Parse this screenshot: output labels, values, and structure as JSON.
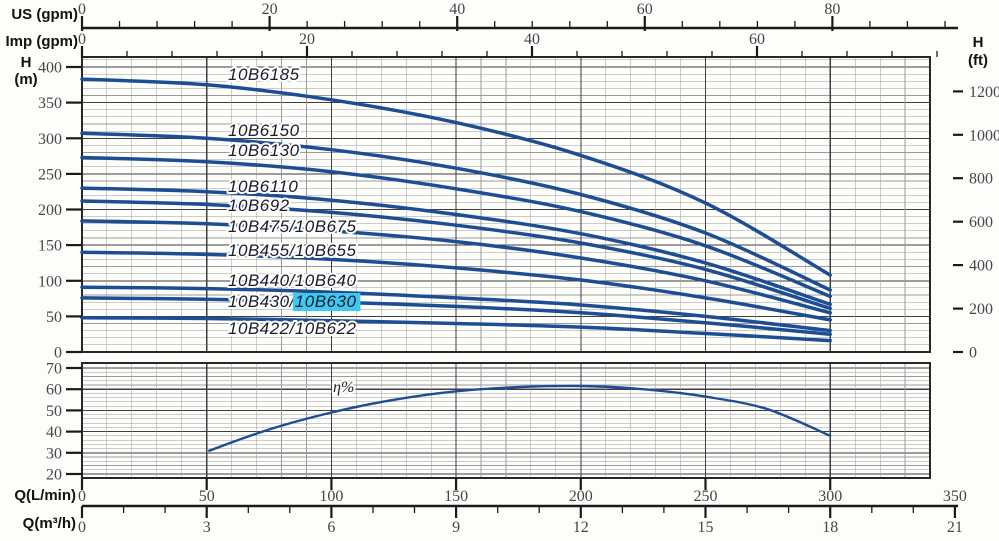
{
  "axis_titles": {
    "us": "US (gpm)",
    "imp": "Imp (gpm)",
    "h_left_sym": "H",
    "h_left_unit": "(m)",
    "h_right_sym": "H",
    "h_right_unit": "(ft)",
    "q_lmin": "Q(L/min)",
    "q_m3h": "Q(m³/h)"
  },
  "colors": {
    "curve_blue": "#1d4e94",
    "highlight_cyan": "#3fc9ee",
    "grid_minor": "#9a9aa0",
    "grid_major": "#3d3d44",
    "panel_border": "#26262b",
    "axis_line": "#1a1a1a",
    "tick_label": "#45454d",
    "curve_label": "#1b1b33"
  },
  "chart_data": {
    "type": "line",
    "title": "Pump performance curves with efficiency panel",
    "top_axis_us_gpm": {
      "label": "US (gpm)",
      "ticks": [
        0,
        20,
        40,
        60,
        80
      ],
      "minor_step": 4,
      "minor_max": 92
    },
    "top_axis_imp_gpm": {
      "label": "Imp (gpm)",
      "ticks": [
        0,
        20,
        40,
        60
      ],
      "minor_step": 4,
      "minor_max": 76
    },
    "bottom_axis_q_lmin": {
      "label": "Q(L/min)",
      "ticks": [
        0,
        50,
        100,
        150,
        200,
        250,
        300,
        350
      ],
      "grid_minor_step": 10
    },
    "bottom_axis_q_m3h": {
      "label": "Q(m³/h)",
      "ticks": [
        0,
        3,
        6,
        9,
        12,
        15,
        18,
        21
      ],
      "minor_step": 1
    },
    "left_axis_h_m": {
      "label": "H (m)",
      "ticks": [
        0,
        50,
        100,
        150,
        200,
        250,
        300,
        350,
        400
      ],
      "range": [
        0,
        400
      ],
      "grid_minor_step": 10
    },
    "right_axis_h_ft": {
      "label": "H (ft)",
      "ticks": [
        0,
        200,
        400,
        600,
        800,
        1000,
        1200
      ]
    },
    "efficiency_axis_pct": {
      "ticks": [
        20,
        30,
        40,
        50,
        60,
        70
      ],
      "grid_minor_step": 2
    },
    "q_values_lmin": [
      0,
      50,
      100,
      150,
      200,
      250,
      300
    ],
    "pump_curves": [
      {
        "label": "10B6185",
        "h_m": [
          383,
          375,
          354,
          322,
          276,
          209,
          108
        ]
      },
      {
        "label": "10B6150",
        "h_m": [
          307,
          300,
          284,
          258,
          221,
          167,
          87
        ]
      },
      {
        "label": "10B6130",
        "h_m": [
          273,
          267,
          253,
          229,
          197,
          149,
          78
        ]
      },
      {
        "label": "10B6110",
        "h_m": [
          230,
          225,
          213,
          193,
          166,
          125,
          67
        ]
      },
      {
        "label": "10B692",
        "h_m": [
          212,
          207,
          196,
          178,
          153,
          116,
          61
        ]
      },
      {
        "label": "10B475/10B675",
        "h_m": [
          184,
          180,
          170,
          155,
          132,
          100,
          55
        ]
      },
      {
        "label": "10B455/10B655",
        "h_m": [
          140,
          137,
          130,
          118,
          101,
          76,
          45
        ]
      },
      {
        "label": "10B440/10B640",
        "h_m": [
          91,
          89,
          84,
          76,
          66,
          50,
          30
        ]
      },
      {
        "label": "10B430/10B630",
        "highlight": "10B630",
        "h_m": [
          76,
          74,
          70,
          64,
          55,
          41,
          25
        ]
      },
      {
        "label": "10B422/10B622",
        "h_m": [
          48,
          47,
          44,
          40,
          35,
          26,
          16
        ]
      }
    ],
    "efficiency_curve": {
      "label": "η%",
      "q_lmin": [
        51,
        75,
        100,
        125,
        150,
        175,
        200,
        225,
        250,
        275,
        300
      ],
      "eta_pct": [
        31,
        41,
        49,
        55,
        59,
        61,
        61.5,
        60,
        56.5,
        50.5,
        38
      ]
    }
  }
}
